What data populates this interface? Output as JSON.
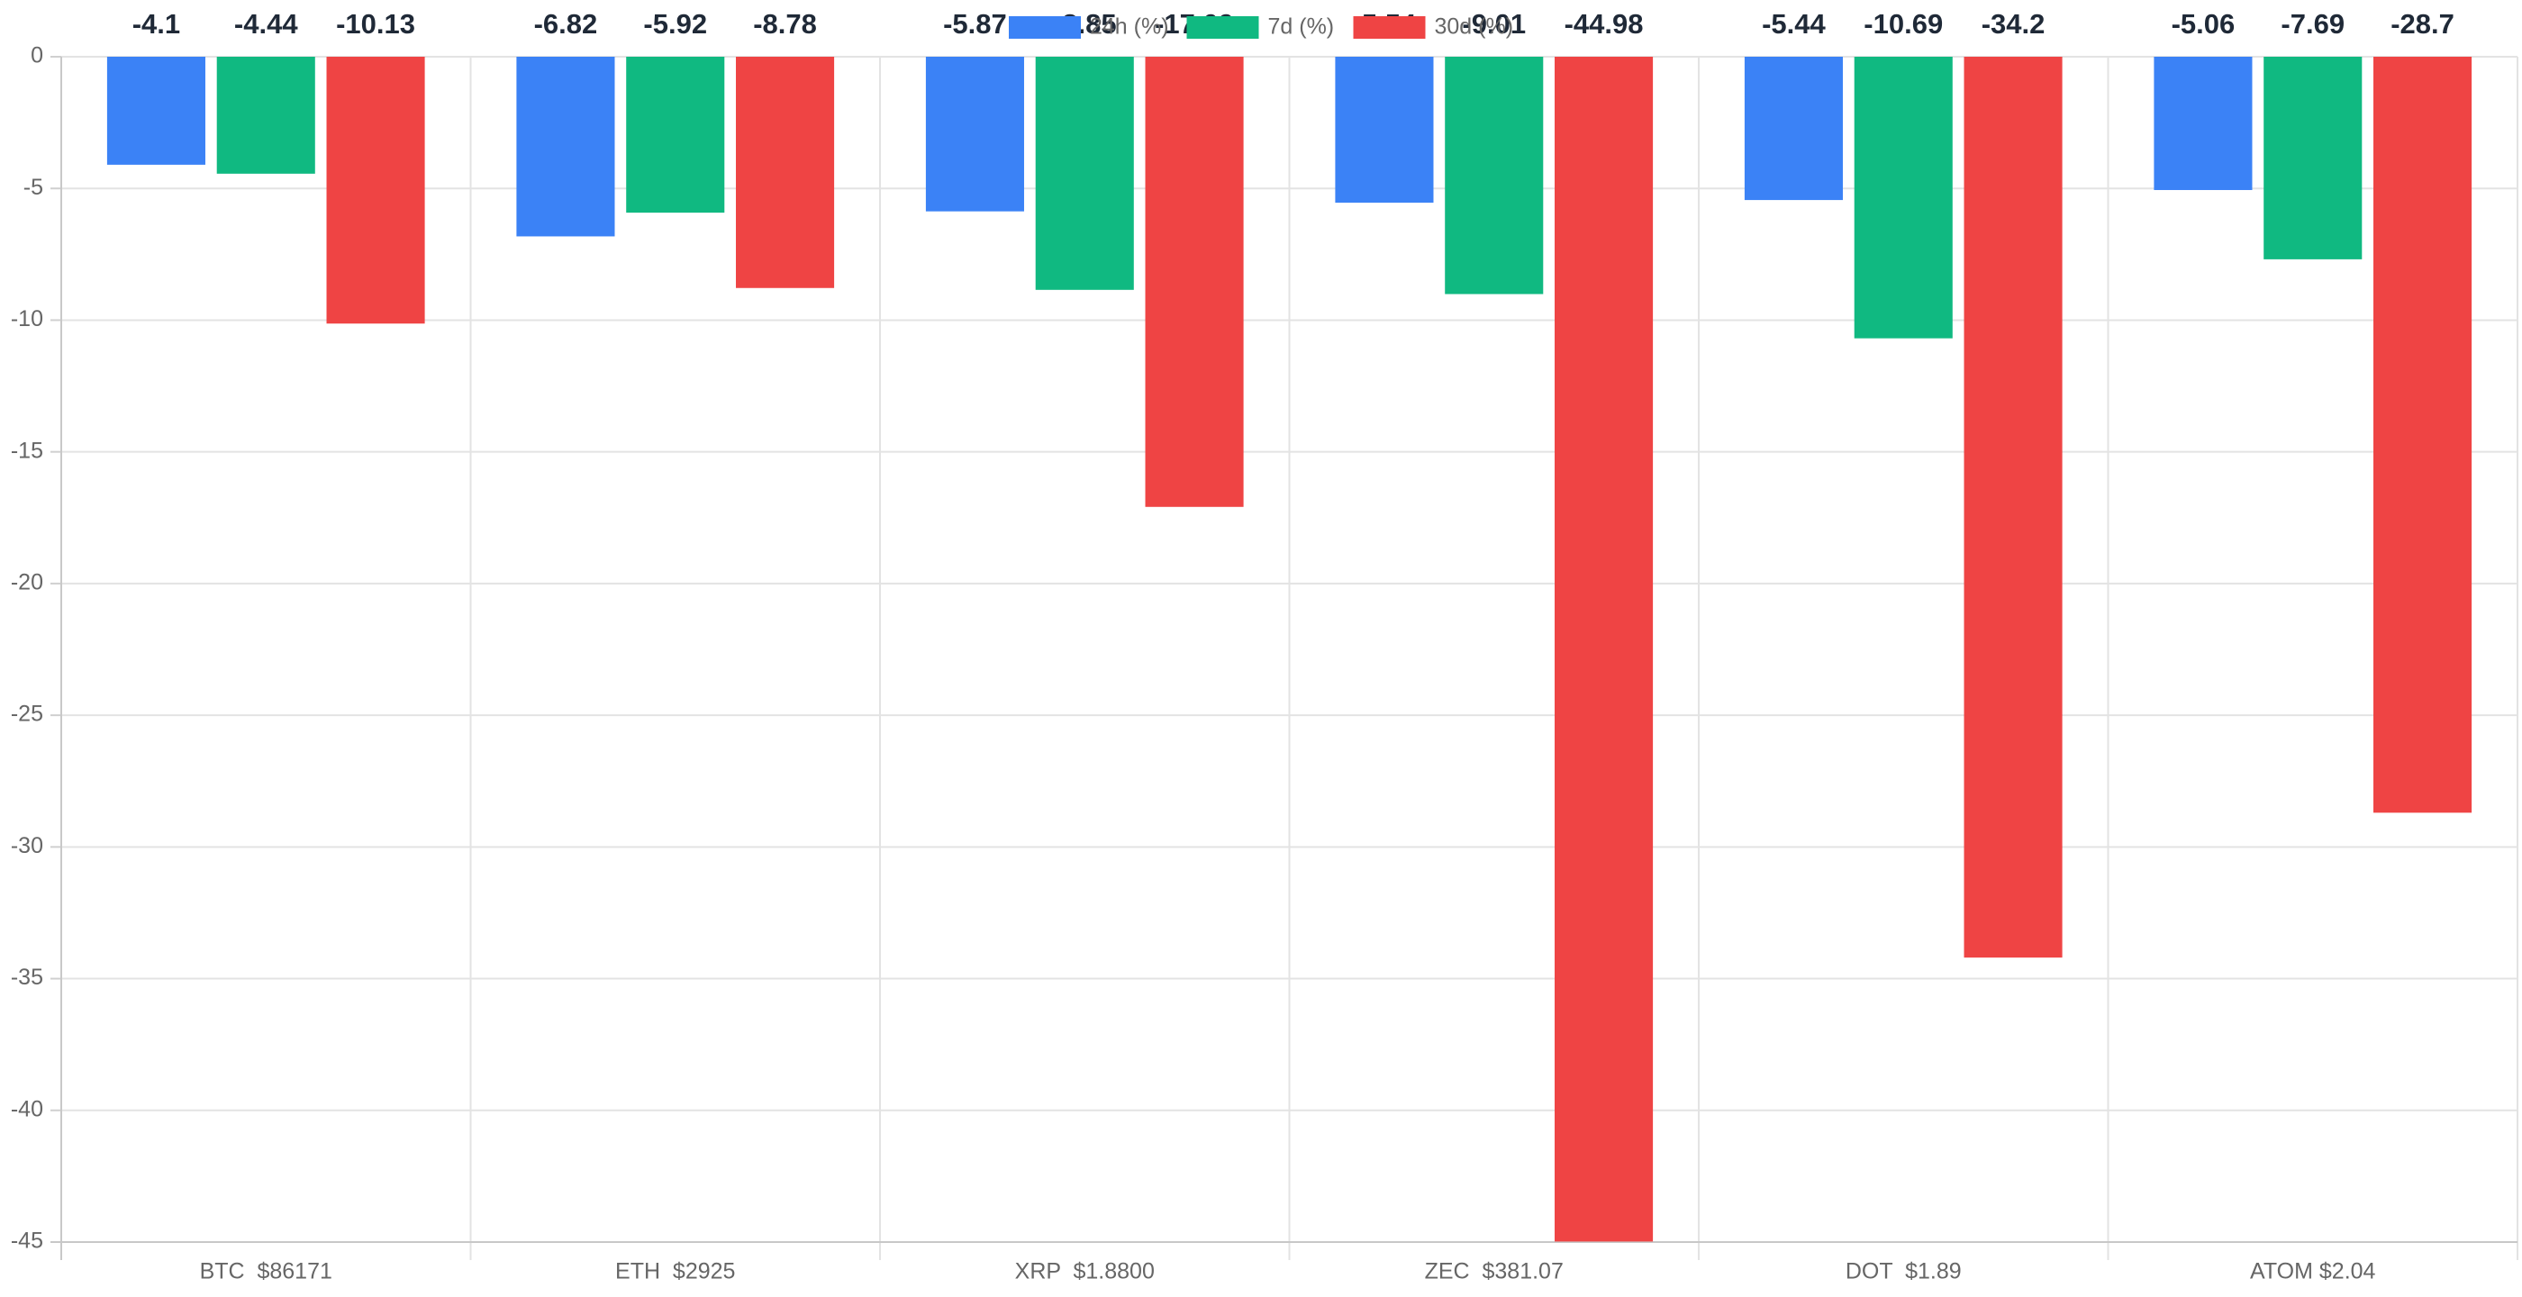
{
  "chart_data": {
    "type": "bar",
    "categories": [
      "BTC  $86171",
      "ETH  $2925",
      "XRP  $1.8800",
      "ZEC  $381.07",
      "DOT  $1.89",
      "ATOM $2.04"
    ],
    "series": [
      {
        "name": "24h (%)",
        "color": "#3b82f6",
        "values": [
          -4.1,
          -6.82,
          -5.87,
          -5.54,
          -5.44,
          -5.06
        ]
      },
      {
        "name": "7d (%)",
        "color": "#10b981",
        "values": [
          -4.44,
          -5.92,
          -8.85,
          -9.01,
          -10.69,
          -7.69
        ]
      },
      {
        "name": "30d (%)",
        "color": "#ef4444",
        "values": [
          -10.13,
          -8.78,
          -17.09,
          -44.98,
          -34.2,
          -28.7
        ]
      }
    ],
    "ylim": [
      -45,
      0
    ],
    "yticks": [
      0,
      -5,
      -10,
      -15,
      -20,
      -25,
      -30,
      -35,
      -40,
      -45
    ],
    "grid": true,
    "legend": "top"
  }
}
